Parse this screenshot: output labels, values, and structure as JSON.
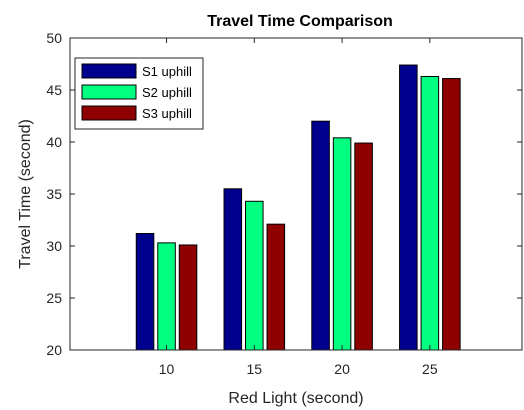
{
  "chart_data": {
    "type": "bar",
    "title": "Travel Time Comparison",
    "xlabel": "Red Light (second)",
    "ylabel": "Travel Time (second)",
    "categories": [
      "10",
      "15",
      "20",
      "25"
    ],
    "ylim": [
      20,
      50
    ],
    "yticks": [
      20,
      25,
      30,
      35,
      40,
      45,
      50
    ],
    "grid": false,
    "legend_position": "top-left",
    "series": [
      {
        "name": "S1 uphill",
        "color": "#00008f",
        "values": [
          31.2,
          35.5,
          42.0,
          47.4
        ]
      },
      {
        "name": "S2 uphill",
        "color": "#00ff80",
        "values": [
          30.3,
          34.3,
          40.4,
          46.3
        ]
      },
      {
        "name": "S3 uphill",
        "color": "#8f0000",
        "values": [
          30.1,
          32.1,
          39.9,
          46.1
        ]
      }
    ]
  }
}
